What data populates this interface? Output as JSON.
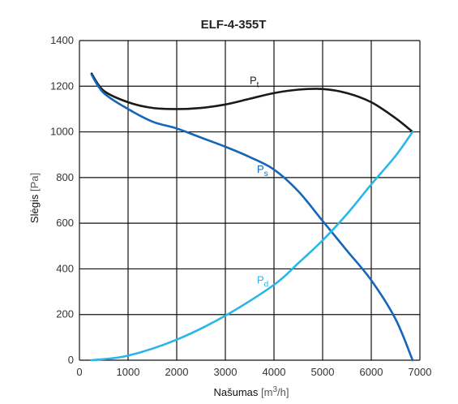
{
  "chart_data": {
    "type": "line",
    "title": "ELF-4-355T",
    "xlabel": {
      "main": "Našumas",
      "unit_open": "[m",
      "unit_exp": "3",
      "unit_close": "/h]"
    },
    "ylabel": {
      "main": "Slėgis",
      "unit": "[Pa]"
    },
    "xlim": [
      0,
      7000
    ],
    "ylim": [
      0,
      1400
    ],
    "x_ticks": [
      "0",
      "1000",
      "2000",
      "3000",
      "4000",
      "5000",
      "6000",
      "7000"
    ],
    "y_ticks": [
      "0",
      "200",
      "400",
      "600",
      "800",
      "1000",
      "1200",
      "1400"
    ],
    "grid": true,
    "series": [
      {
        "name": "Pt",
        "label_main": "P",
        "label_sub": "t",
        "color": "#1a1a1a",
        "x": [
          250,
          500,
          1000,
          1500,
          2000,
          2500,
          3000,
          3500,
          4000,
          4500,
          5000,
          5500,
          6000,
          6500,
          6850
        ],
        "y": [
          1255,
          1180,
          1130,
          1105,
          1100,
          1105,
          1120,
          1145,
          1170,
          1185,
          1188,
          1170,
          1130,
          1060,
          1000
        ]
      },
      {
        "name": "Ps",
        "label_main": "P",
        "label_sub": "s",
        "color": "#1565b8",
        "x": [
          250,
          500,
          1000,
          1500,
          2000,
          2500,
          3000,
          3500,
          4000,
          4500,
          5000,
          5500,
          6000,
          6500,
          6850
        ],
        "y": [
          1250,
          1170,
          1100,
          1045,
          1015,
          975,
          935,
          890,
          835,
          740,
          610,
          480,
          350,
          180,
          0
        ]
      },
      {
        "name": "Pd",
        "label_main": "P",
        "label_sub": "d",
        "color": "#29b6e8",
        "x": [
          250,
          1000,
          2000,
          3000,
          4000,
          4500,
          5000,
          5500,
          6000,
          6500,
          6850
        ],
        "y": [
          0,
          20,
          90,
          195,
          330,
          425,
          525,
          640,
          770,
          895,
          1000
        ]
      }
    ]
  }
}
